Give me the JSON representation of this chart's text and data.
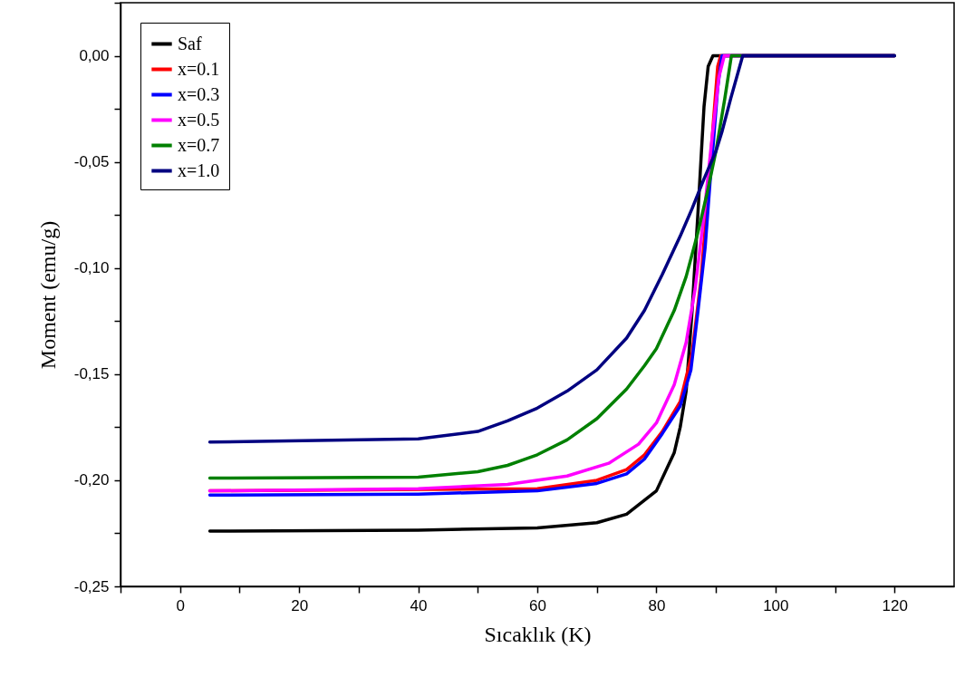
{
  "chart_data": {
    "type": "line",
    "xlabel": "Sıcaklık (K)",
    "ylabel": "Moment (emu/g)",
    "xlim": [
      -10,
      130
    ],
    "ylim": [
      -0.25,
      0.025
    ],
    "xticks": [
      {
        "value": -10,
        "label": null
      },
      0,
      {
        "value": 10,
        "label": null
      },
      20,
      {
        "value": 30,
        "label": null
      },
      40,
      {
        "value": 50,
        "label": null
      },
      60,
      {
        "value": 70,
        "label": null
      },
      80,
      {
        "value": 90,
        "label": null
      },
      100,
      {
        "value": 110,
        "label": null
      },
      120
    ],
    "yticks": [
      {
        "value": -0.25,
        "label": "-0,25"
      },
      {
        "value": -0.225,
        "label": null
      },
      {
        "value": -0.2,
        "label": "-0,20"
      },
      {
        "value": -0.175,
        "label": null
      },
      {
        "value": -0.15,
        "label": "-0,15"
      },
      {
        "value": -0.125,
        "label": null
      },
      {
        "value": -0.1,
        "label": "-0,10"
      },
      {
        "value": -0.075,
        "label": null
      },
      {
        "value": -0.05,
        "label": "-0,05"
      },
      {
        "value": -0.025,
        "label": null
      },
      {
        "value": 0,
        "label": "0,00"
      },
      {
        "value": 0.025,
        "label": null
      }
    ],
    "legend": "top left",
    "grid": false,
    "line_style": "solid",
    "series": [
      {
        "name": "Saf",
        "color": "#000000",
        "x": [
          5,
          40,
          60,
          70,
          75,
          80,
          82,
          83,
          84,
          85,
          86,
          87,
          88,
          88.7,
          89.5,
          120
        ],
        "values": [
          -0.224,
          -0.2235,
          -0.2225,
          -0.22,
          -0.216,
          -0.205,
          -0.193,
          -0.187,
          -0.175,
          -0.158,
          -0.12,
          -0.073,
          -0.024,
          -0.005,
          0,
          0
        ]
      },
      {
        "name": "x=0.1",
        "color": "#ff0000",
        "x": [
          5,
          60,
          70,
          75,
          78,
          81,
          84,
          86,
          87.5,
          88.8,
          89.6,
          90.3,
          90.8,
          120
        ],
        "values": [
          -0.205,
          -0.204,
          -0.2,
          -0.195,
          -0.188,
          -0.177,
          -0.163,
          -0.14,
          -0.105,
          -0.06,
          -0.03,
          -0.005,
          0,
          0
        ]
      },
      {
        "name": "x=0.3",
        "color": "#0000ff",
        "x": [
          5,
          40,
          60,
          70,
          75,
          78,
          81,
          84,
          85.8,
          87,
          88.2,
          89,
          89.6,
          90.3,
          91,
          120
        ],
        "values": [
          -0.207,
          -0.2065,
          -0.205,
          -0.2015,
          -0.197,
          -0.19,
          -0.178,
          -0.165,
          -0.148,
          -0.12,
          -0.09,
          -0.06,
          -0.04,
          -0.015,
          0,
          0
        ]
      },
      {
        "name": "x=0.5",
        "color": "#ff00ff",
        "x": [
          5,
          40,
          55,
          65,
          72,
          77,
          80,
          83,
          85,
          86.5,
          88,
          89.3,
          90.5,
          91.4,
          120
        ],
        "values": [
          -0.205,
          -0.204,
          -0.202,
          -0.198,
          -0.192,
          -0.183,
          -0.173,
          -0.155,
          -0.135,
          -0.11,
          -0.075,
          -0.04,
          -0.01,
          0,
          0
        ]
      },
      {
        "name": "x=0.7",
        "color": "#008000",
        "x": [
          5,
          40,
          50,
          55,
          60,
          65,
          70,
          75,
          78,
          80,
          83,
          85,
          87,
          88.5,
          90,
          91.5,
          92.6,
          120
        ],
        "values": [
          -0.199,
          -0.1985,
          -0.196,
          -0.193,
          -0.188,
          -0.181,
          -0.171,
          -0.157,
          -0.146,
          -0.138,
          -0.12,
          -0.104,
          -0.083,
          -0.065,
          -0.045,
          -0.02,
          0,
          0
        ]
      },
      {
        "name": "x=1.0",
        "color": "#000080",
        "x": [
          5,
          40,
          50,
          55,
          60,
          65,
          70,
          75,
          78,
          81,
          84,
          86,
          88,
          90,
          91,
          92.5,
          94.5,
          120
        ],
        "values": [
          -0.182,
          -0.1805,
          -0.177,
          -0.172,
          -0.166,
          -0.158,
          -0.148,
          -0.133,
          -0.12,
          -0.103,
          -0.085,
          -0.072,
          -0.058,
          -0.045,
          -0.036,
          -0.02,
          0,
          0
        ]
      }
    ]
  }
}
